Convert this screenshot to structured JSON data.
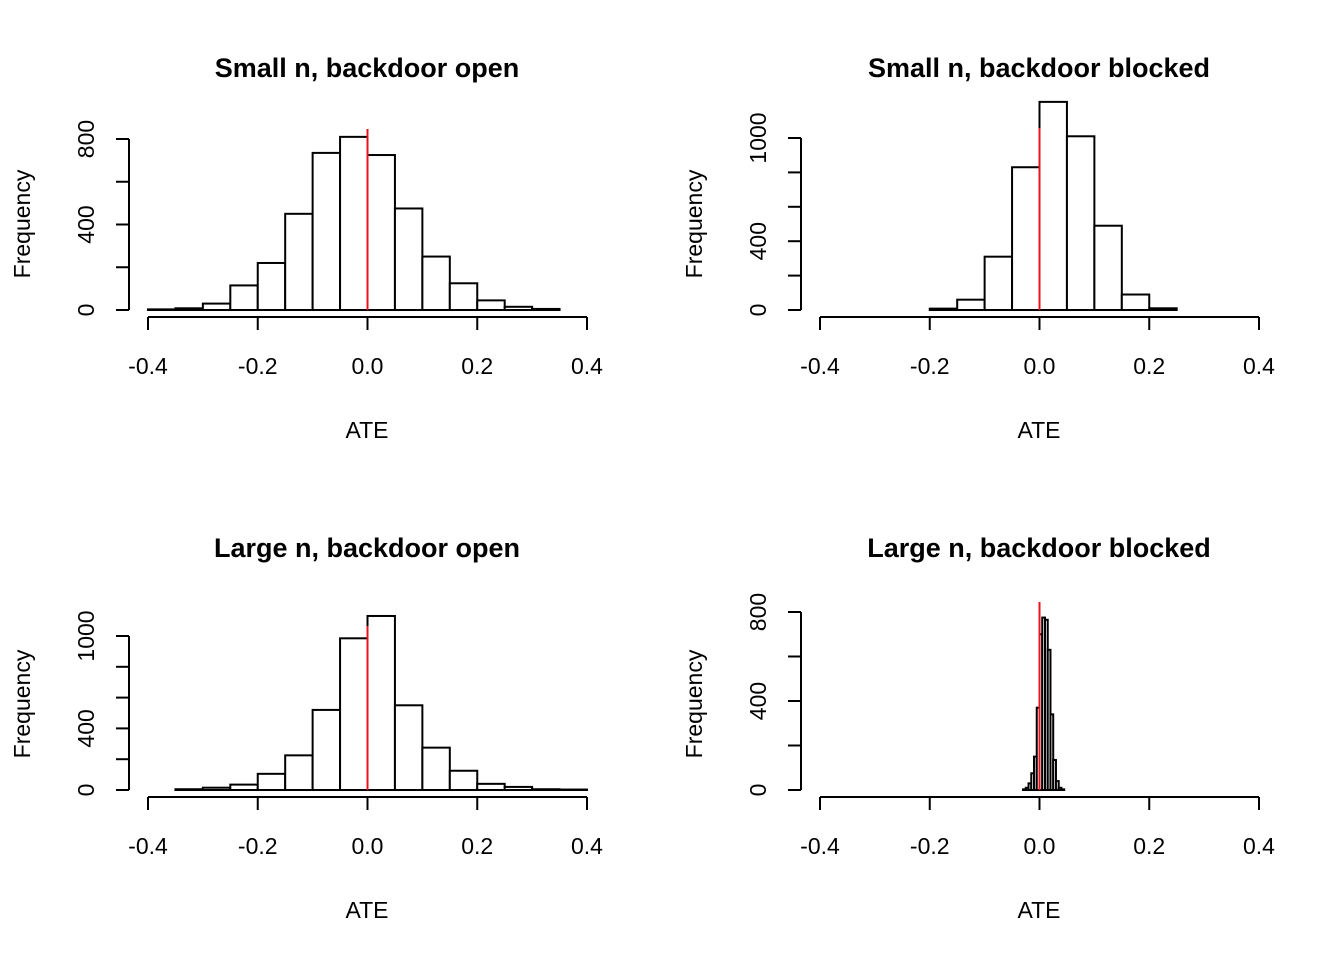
{
  "chart_data": [
    {
      "type": "bar",
      "subtype": "histogram",
      "title": "Small n, backdoor open",
      "xlabel": "ATE",
      "ylabel": "Frequency",
      "xlim": [
        -0.4,
        0.4
      ],
      "ylim": [
        0,
        800
      ],
      "x_ticks": [
        "-0.4",
        "-0.2",
        "0.0",
        "0.2",
        "0.4"
      ],
      "y_ticks": [
        "0",
        "400",
        "800"
      ],
      "bin_width": 0.05,
      "bins": [
        {
          "x0": -0.4,
          "x1": -0.35,
          "count": 3
        },
        {
          "x0": -0.35,
          "x1": -0.3,
          "count": 8
        },
        {
          "x0": -0.3,
          "x1": -0.25,
          "count": 30
        },
        {
          "x0": -0.25,
          "x1": -0.2,
          "count": 115
        },
        {
          "x0": -0.2,
          "x1": -0.15,
          "count": 220
        },
        {
          "x0": -0.15,
          "x1": -0.1,
          "count": 450
        },
        {
          "x0": -0.1,
          "x1": -0.05,
          "count": 735
        },
        {
          "x0": -0.05,
          "x1": 0.0,
          "count": 810
        },
        {
          "x0": 0.0,
          "x1": 0.05,
          "count": 725
        },
        {
          "x0": 0.05,
          "x1": 0.1,
          "count": 475
        },
        {
          "x0": 0.1,
          "x1": 0.15,
          "count": 250
        },
        {
          "x0": 0.15,
          "x1": 0.2,
          "count": 125
        },
        {
          "x0": 0.2,
          "x1": 0.25,
          "count": 45
        },
        {
          "x0": 0.25,
          "x1": 0.3,
          "count": 15
        },
        {
          "x0": 0.3,
          "x1": 0.35,
          "count": 5
        }
      ],
      "reference_line": {
        "x": 0.0,
        "color": "#e8141c"
      }
    },
    {
      "type": "bar",
      "subtype": "histogram",
      "title": "Small n, backdoor blocked",
      "xlabel": "ATE",
      "ylabel": "Frequency",
      "xlim": [
        -0.4,
        0.4
      ],
      "ylim": [
        0,
        1200
      ],
      "x_ticks": [
        "-0.4",
        "-0.2",
        "0.0",
        "0.2",
        "0.4"
      ],
      "y_ticks": [
        "0",
        "400",
        "1000"
      ],
      "bin_width": 0.05,
      "bins": [
        {
          "x0": -0.2,
          "x1": -0.15,
          "count": 8
        },
        {
          "x0": -0.15,
          "x1": -0.1,
          "count": 60
        },
        {
          "x0": -0.1,
          "x1": -0.05,
          "count": 310
        },
        {
          "x0": -0.05,
          "x1": 0.0,
          "count": 830
        },
        {
          "x0": 0.0,
          "x1": 0.05,
          "count": 1210
        },
        {
          "x0": 0.05,
          "x1": 0.1,
          "count": 1010
        },
        {
          "x0": 0.1,
          "x1": 0.15,
          "count": 490
        },
        {
          "x0": 0.15,
          "x1": 0.2,
          "count": 90
        },
        {
          "x0": 0.2,
          "x1": 0.25,
          "count": 10
        }
      ],
      "reference_line": {
        "x": 0.0,
        "color": "#e8141c"
      }
    },
    {
      "type": "bar",
      "subtype": "histogram",
      "title": "Large n, backdoor open",
      "xlabel": "ATE",
      "ylabel": "Frequency",
      "xlim": [
        -0.4,
        0.4
      ],
      "ylim": [
        0,
        1200
      ],
      "x_ticks": [
        "-0.4",
        "-0.2",
        "0.0",
        "0.2",
        "0.4"
      ],
      "y_ticks": [
        "0",
        "400",
        "1000"
      ],
      "bin_width": 0.05,
      "bins": [
        {
          "x0": -0.35,
          "x1": -0.3,
          "count": 5
        },
        {
          "x0": -0.3,
          "x1": -0.25,
          "count": 15
        },
        {
          "x0": -0.25,
          "x1": -0.2,
          "count": 35
        },
        {
          "x0": -0.2,
          "x1": -0.15,
          "count": 105
        },
        {
          "x0": -0.15,
          "x1": -0.1,
          "count": 225
        },
        {
          "x0": -0.1,
          "x1": -0.05,
          "count": 520
        },
        {
          "x0": -0.05,
          "x1": 0.0,
          "count": 985
        },
        {
          "x0": 0.0,
          "x1": 0.05,
          "count": 1130
        },
        {
          "x0": 0.05,
          "x1": 0.1,
          "count": 550
        },
        {
          "x0": 0.1,
          "x1": 0.15,
          "count": 275
        },
        {
          "x0": 0.15,
          "x1": 0.2,
          "count": 125
        },
        {
          "x0": 0.2,
          "x1": 0.25,
          "count": 40
        },
        {
          "x0": 0.25,
          "x1": 0.3,
          "count": 20
        },
        {
          "x0": 0.3,
          "x1": 0.35,
          "count": 5
        },
        {
          "x0": 0.35,
          "x1": 0.4,
          "count": 3
        }
      ],
      "reference_line": {
        "x": 0.0,
        "color": "#e8141c"
      }
    },
    {
      "type": "bar",
      "subtype": "histogram",
      "title": "Large n, backdoor blocked",
      "xlabel": "ATE",
      "ylabel": "Frequency",
      "xlim": [
        -0.4,
        0.4
      ],
      "ylim": [
        0,
        800
      ],
      "x_ticks": [
        "-0.4",
        "-0.2",
        "0.0",
        "0.2",
        "0.4"
      ],
      "y_ticks": [
        "0",
        "400",
        "800"
      ],
      "bin_width": 0.005,
      "bins": [
        {
          "x0": -0.03,
          "x1": -0.025,
          "count": 3
        },
        {
          "x0": -0.025,
          "x1": -0.02,
          "count": 10
        },
        {
          "x0": -0.02,
          "x1": -0.015,
          "count": 30
        },
        {
          "x0": -0.015,
          "x1": -0.01,
          "count": 75
        },
        {
          "x0": -0.01,
          "x1": -0.005,
          "count": 150
        },
        {
          "x0": -0.005,
          "x1": 0.0,
          "count": 370
        },
        {
          "x0": 0.0,
          "x1": 0.005,
          "count": 700
        },
        {
          "x0": 0.005,
          "x1": 0.01,
          "count": 775
        },
        {
          "x0": 0.01,
          "x1": 0.015,
          "count": 765
        },
        {
          "x0": 0.015,
          "x1": 0.02,
          "count": 630
        },
        {
          "x0": 0.02,
          "x1": 0.025,
          "count": 340
        },
        {
          "x0": 0.025,
          "x1": 0.03,
          "count": 135
        },
        {
          "x0": 0.03,
          "x1": 0.035,
          "count": 40
        },
        {
          "x0": 0.035,
          "x1": 0.04,
          "count": 10
        },
        {
          "x0": 0.04,
          "x1": 0.045,
          "count": 3
        }
      ],
      "reference_line": {
        "x": 0.0,
        "color": "#e8141c"
      }
    }
  ]
}
